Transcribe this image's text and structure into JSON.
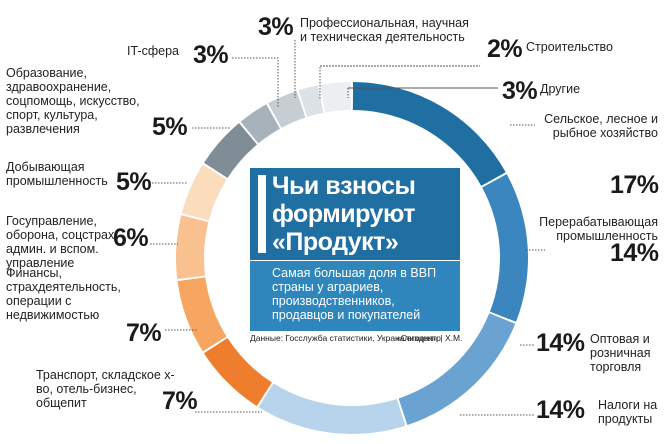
{
  "chart_data": {
    "type": "donut",
    "title": "Чьи взносы формируют «Продукт»",
    "subtitle": "Самая большая доля в ВВП страны у аграриев, производственников, продавцов и покупателей",
    "source": "Данные: Госслужба статистики, Укранализцентр",
    "credit": "«Сегодня» | Х.М.",
    "unit": "%",
    "slices": [
      {
        "label": "Сельское, лесное и рыбное хозяйство",
        "value": 17,
        "value_label": "17%",
        "color": "#1f6fa3"
      },
      {
        "label": "Перерабатывающая промышленность",
        "value": 14,
        "value_label": "14%",
        "color": "#3c86bf"
      },
      {
        "label": "Оптовая и розничная торговля",
        "value": 14,
        "value_label": "14%",
        "color": "#6aa3d1"
      },
      {
        "label": "Налоги на продукты",
        "value": 14,
        "value_label": "14%",
        "color": "#b8d4ec"
      },
      {
        "label": "Транспорт, складское х-во, отель-бизнес, общепит",
        "value": 7,
        "value_label": "7%",
        "color": "#ee7d2e"
      },
      {
        "label": "Финансы, страхдеятельность, операции с недвижимостью",
        "value": 7,
        "value_label": "7%",
        "color": "#f6a660"
      },
      {
        "label": "Госуправление, оборона, соцстрах, админ. и вспом. управление",
        "value": 6,
        "value_label": "6%",
        "color": "#f8c18f"
      },
      {
        "label": "Добывающая промышленность",
        "value": 5,
        "value_label": "5%",
        "color": "#fbdcbd"
      },
      {
        "label": "Образование, здравоохранение, соцпомощь, искусство, спорт, культура, развлечения",
        "value": 5,
        "value_label": "5%",
        "color": "#7f8d97"
      },
      {
        "label": "IT-сфера",
        "value": 3,
        "value_label": "3%",
        "color": "#a7b2ba"
      },
      {
        "label": "Профессиональная, научная и техническая деятельность",
        "value": 3,
        "value_label": "3%",
        "color": "#c6ced4"
      },
      {
        "label": "Строительство",
        "value": 2,
        "value_label": "2%",
        "color": "#dde2e6"
      },
      {
        "label": "Другие",
        "value": 3,
        "value_label": "3%",
        "color": "#eceff1"
      }
    ]
  }
}
